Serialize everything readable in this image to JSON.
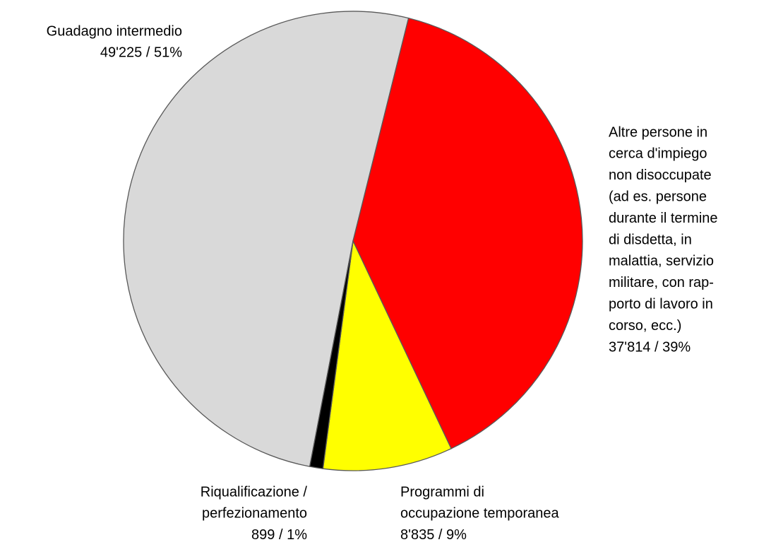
{
  "chart_data": {
    "type": "pie",
    "categories": [
      [
        "Guadagno intermedio"
      ],
      [
        "Altre persone in",
        "cerca d'impiego",
        "non disoccupate",
        "(ad es. persone",
        "durante il termine",
        "di disdetta, in",
        "malattia, servizio",
        "militare, con rap-",
        "porto di lavoro in",
        "corso, ecc.)"
      ],
      [
        "Programmi di",
        "occupazione temporanea"
      ],
      [
        "Riqualificazione /",
        "perfezionamento"
      ]
    ],
    "values": [
      49225,
      37814,
      8835,
      899
    ],
    "value_labels": [
      "49'225 / 51%",
      "37'814 / 39%",
      "8'835 / 9%",
      "899 / 1%"
    ],
    "colors": [
      "#d9d9d9",
      "#ff0000",
      "#ffff00",
      "#000000"
    ]
  }
}
